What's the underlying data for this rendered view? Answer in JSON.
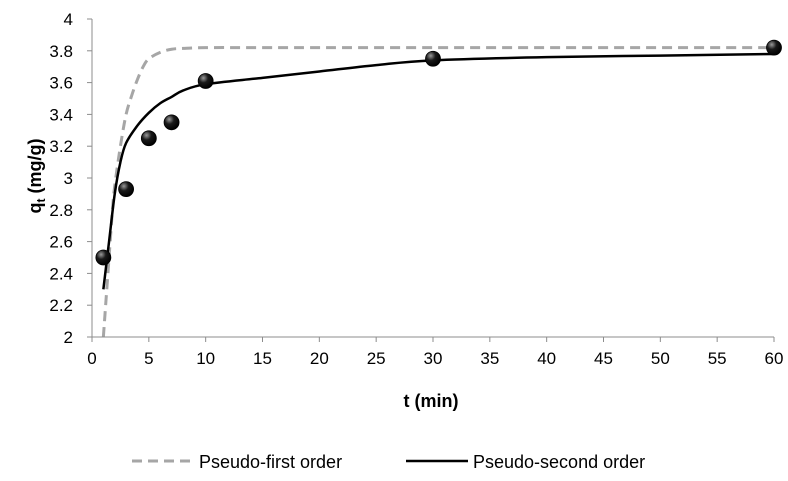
{
  "chart_data": {
    "type": "scatter",
    "title": "",
    "xlabel": "t (min)",
    "ylabel_main": "q",
    "ylabel_sub": "t",
    "ylabel_rest": " (mg/g)",
    "xlim": [
      0,
      60
    ],
    "ylim": [
      2,
      4
    ],
    "xticks": [
      0,
      5,
      10,
      15,
      20,
      25,
      30,
      35,
      40,
      45,
      50,
      55,
      60
    ],
    "yticks": [
      2,
      2.2,
      2.4,
      2.6,
      2.8,
      3,
      3.2,
      3.4,
      3.6,
      3.8,
      4
    ],
    "ytick_labels": [
      "2",
      "2.2",
      "2.4",
      "2.6",
      "2.8",
      "3",
      "3.2",
      "3.4",
      "3.6",
      "3.8",
      "4"
    ],
    "grid": false,
    "legend_position": "bottom",
    "experimental": {
      "x": [
        1,
        3,
        5,
        7,
        10,
        30,
        60
      ],
      "y": [
        2.5,
        2.93,
        3.25,
        3.35,
        3.61,
        3.75,
        3.82
      ],
      "color": "#000000"
    },
    "series": [
      {
        "name": "Pseudo-first order",
        "color": "#a6a6a6",
        "dash": true,
        "x": [
          1,
          1.2,
          1.5,
          1.8,
          2,
          2.5,
          3,
          3.5,
          4,
          4.5,
          5,
          6,
          7,
          8,
          10,
          15,
          20,
          30,
          40,
          50,
          60
        ],
        "y": [
          2.0,
          2.2,
          2.5,
          2.8,
          2.95,
          3.2,
          3.4,
          3.52,
          3.62,
          3.7,
          3.75,
          3.79,
          3.81,
          3.815,
          3.82,
          3.82,
          3.82,
          3.82,
          3.82,
          3.82,
          3.82
        ]
      },
      {
        "name": "Pseudo-second order",
        "color": "#000000",
        "dash": false,
        "x": [
          1,
          1.5,
          2,
          2.5,
          3,
          4,
          5,
          6,
          7,
          8,
          10,
          15,
          20,
          25,
          30,
          40,
          50,
          60
        ],
        "y": [
          2.3,
          2.6,
          2.9,
          3.1,
          3.22,
          3.33,
          3.41,
          3.47,
          3.51,
          3.55,
          3.59,
          3.63,
          3.67,
          3.71,
          3.74,
          3.76,
          3.77,
          3.78
        ]
      }
    ]
  }
}
